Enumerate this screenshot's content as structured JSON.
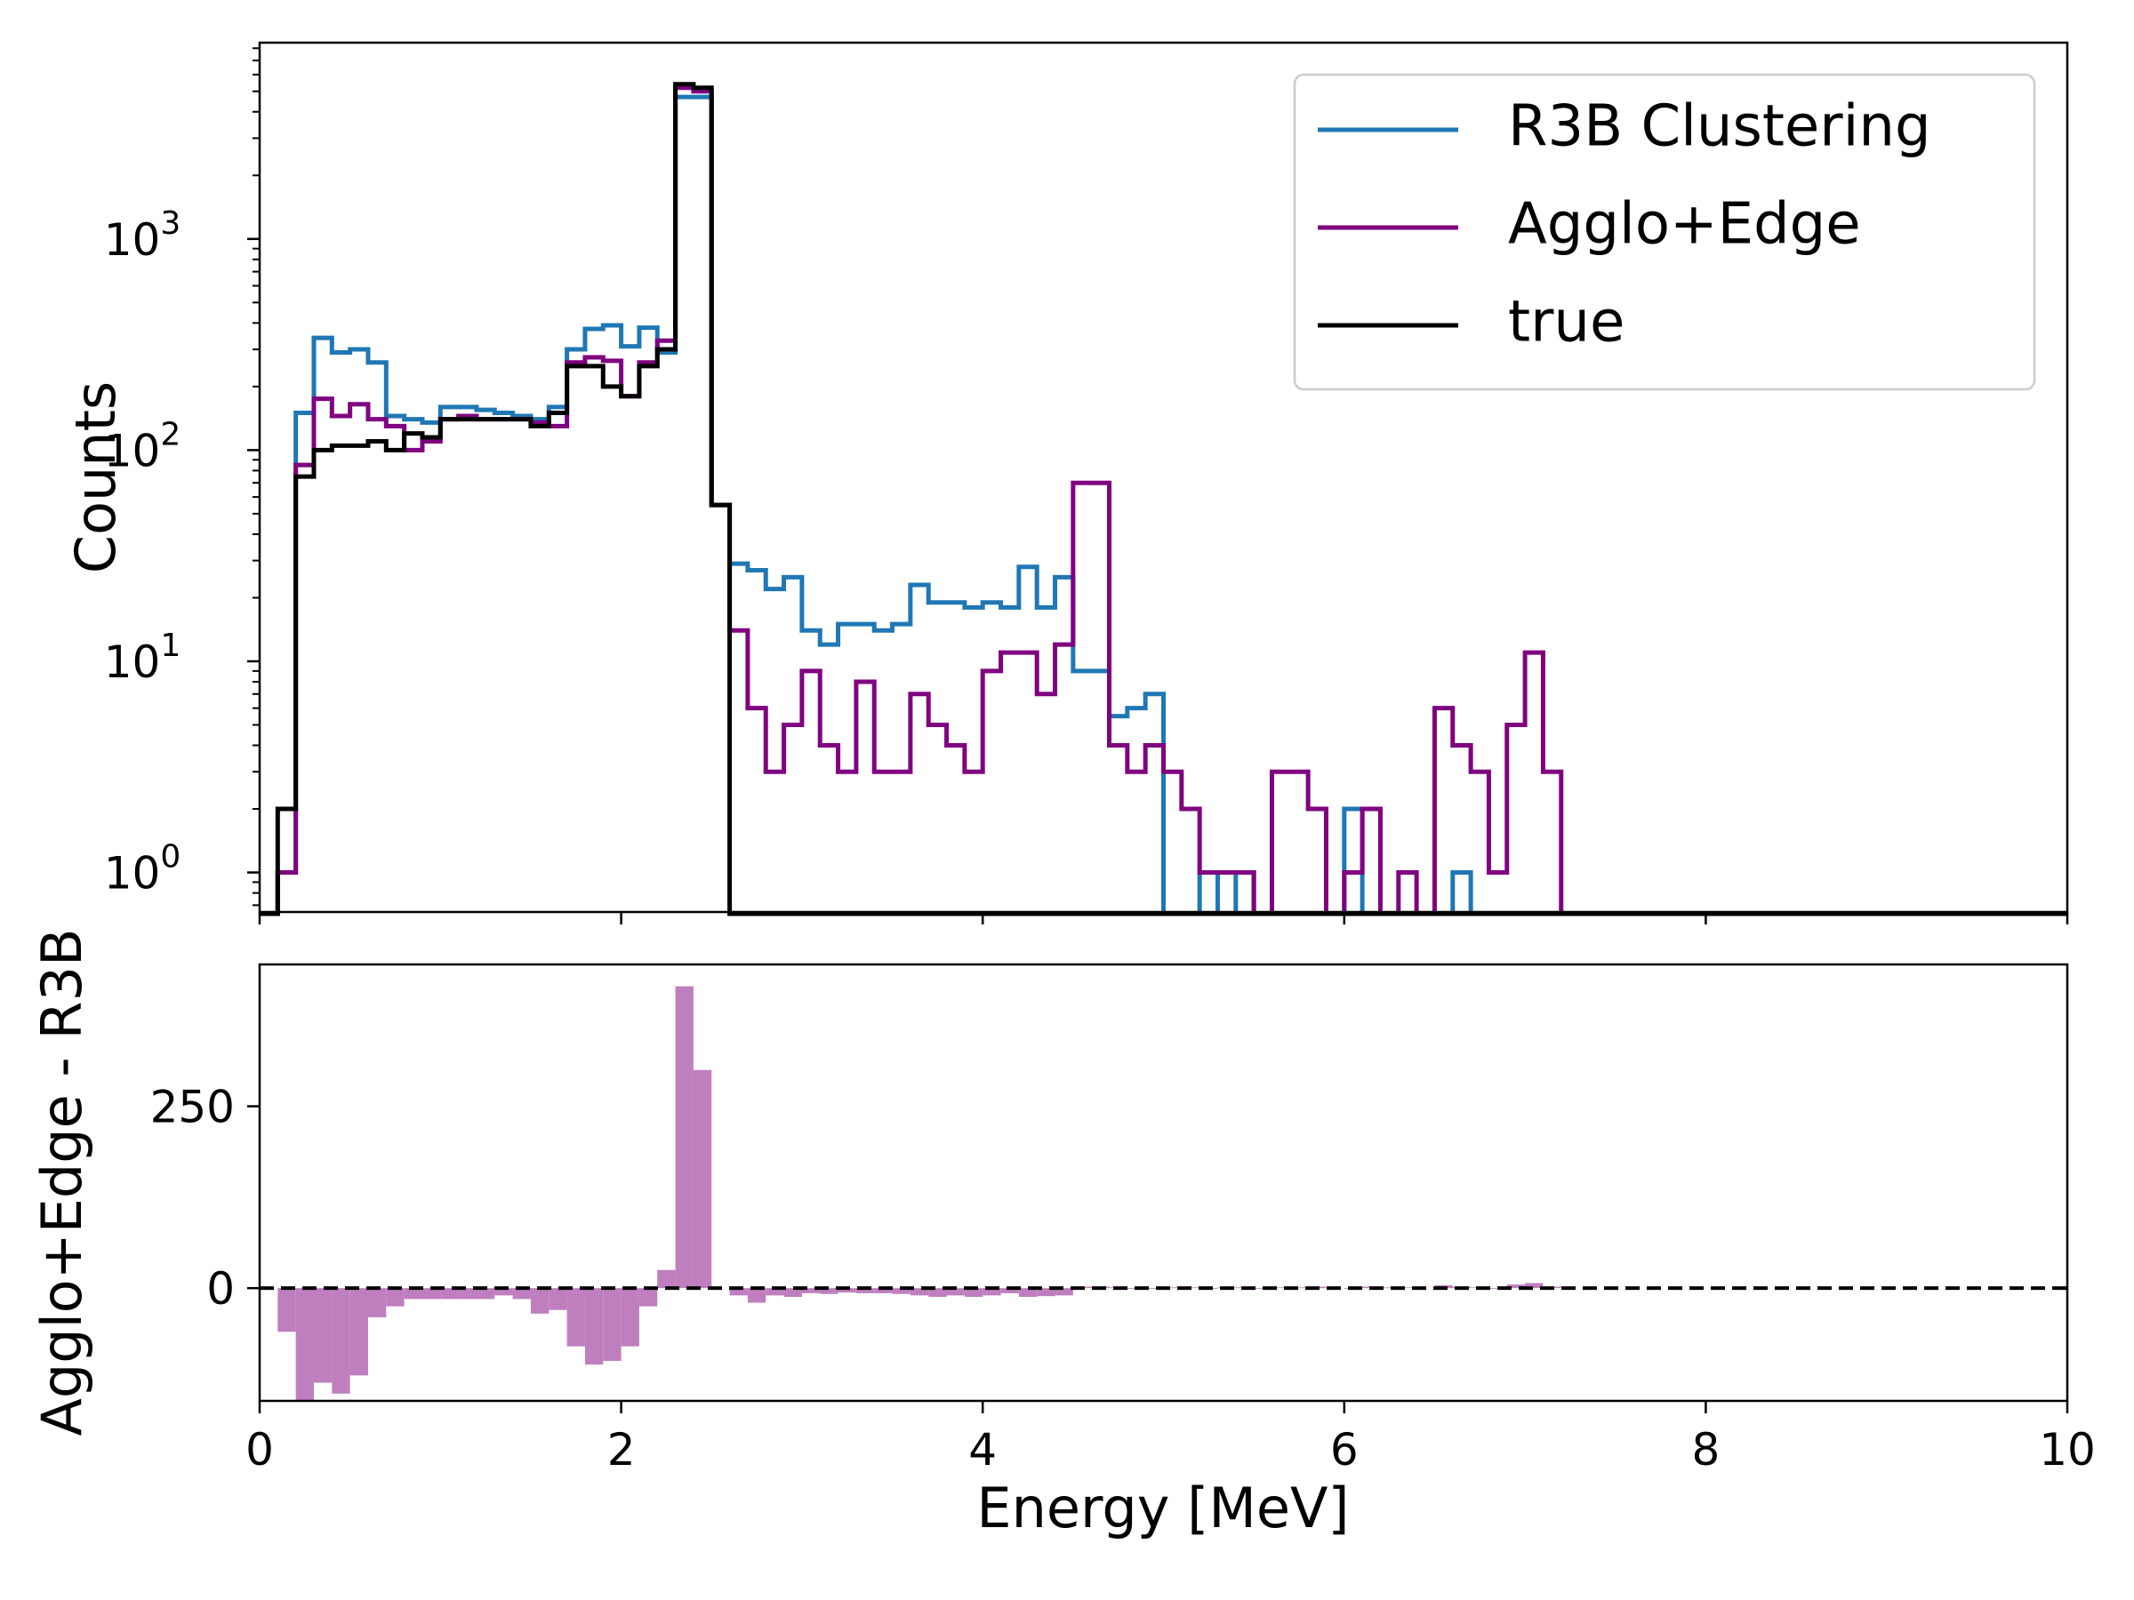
{
  "chart_data": [
    {
      "type": "histogram",
      "panel": "top",
      "ylabel": "Counts",
      "yscale": "log",
      "ylim": [
        0.65,
        8500
      ],
      "xlim": [
        0,
        10
      ],
      "bin_width": 0.1,
      "bin_start": 0.0,
      "yticks": [
        {
          "value": 1,
          "base": "10",
          "exp": "0"
        },
        {
          "value": 10,
          "base": "10",
          "exp": "1"
        },
        {
          "value": 100,
          "base": "10",
          "exp": "2"
        },
        {
          "value": 1000,
          "base": "10",
          "exp": "3"
        }
      ],
      "legend_position": "top-right",
      "series": [
        {
          "name": "R3B Clustering",
          "color": "#1f77b4",
          "values": [
            0,
            1,
            150,
            340,
            290,
            300,
            260,
            145,
            140,
            135,
            160,
            160,
            155,
            150,
            145,
            140,
            160,
            300,
            375,
            390,
            310,
            380,
            290,
            4700,
            4700,
            55,
            29,
            27,
            22,
            25,
            14,
            12,
            15,
            15,
            14,
            15,
            23,
            19,
            19,
            18,
            19,
            18,
            28,
            18,
            25,
            9,
            9,
            5.5,
            6,
            7,
            0,
            0,
            1,
            0,
            1,
            0,
            0,
            0,
            0,
            0,
            2,
            0,
            0,
            0,
            0,
            0,
            1,
            0,
            0,
            0,
            0,
            0,
            0,
            0,
            0,
            0,
            0,
            0,
            0,
            0,
            0,
            0,
            0,
            0,
            0,
            0,
            0,
            0,
            0,
            0,
            0,
            0,
            0,
            0,
            0,
            0,
            0,
            0,
            0,
            0
          ]
        },
        {
          "name": "Agglo+Edge",
          "color": "#800080",
          "values": [
            0,
            1,
            85,
            175,
            145,
            165,
            140,
            130,
            100,
            110,
            140,
            145,
            140,
            140,
            140,
            135,
            130,
            260,
            275,
            265,
            180,
            260,
            330,
            5200,
            5000,
            55,
            14,
            6,
            3,
            5,
            9,
            4,
            3,
            8,
            3,
            3,
            7,
            5,
            4,
            3,
            9,
            11,
            11,
            7,
            12,
            70,
            70,
            4,
            3,
            4,
            3,
            2,
            1,
            1,
            1,
            0,
            3,
            3,
            2,
            0,
            1,
            2,
            0,
            1,
            0,
            6,
            4,
            3,
            1,
            5,
            11,
            3,
            0,
            0,
            0,
            0,
            0,
            0,
            0,
            0,
            0,
            0,
            0,
            0,
            0,
            0,
            0,
            0,
            0,
            0,
            0,
            0,
            0,
            0,
            0,
            0,
            0,
            0,
            0,
            0
          ]
        },
        {
          "name": "true",
          "color": "#000000",
          "values": [
            0,
            2,
            75,
            100,
            105,
            105,
            110,
            100,
            120,
            115,
            140,
            140,
            140,
            140,
            140,
            130,
            150,
            250,
            250,
            200,
            180,
            250,
            300,
            5400,
            5200,
            55,
            0,
            0,
            0,
            0,
            0,
            0,
            0,
            0,
            0,
            0,
            0,
            0,
            0,
            0,
            0,
            0,
            0,
            0,
            0,
            0,
            0,
            0,
            0,
            0,
            0,
            0,
            0,
            0,
            0,
            0,
            0,
            0,
            0,
            0,
            0,
            0,
            0,
            0,
            0,
            0,
            0,
            0,
            0,
            0,
            0,
            0,
            0,
            0,
            0,
            0,
            0,
            0,
            0,
            0,
            0,
            0,
            0,
            0,
            0,
            0,
            0,
            0,
            0,
            0,
            0,
            0,
            0,
            0,
            0,
            0,
            0,
            0,
            0,
            0
          ]
        }
      ]
    },
    {
      "type": "bar",
      "panel": "bottom",
      "xlabel": "Energy [MeV]",
      "ylabel": "Agglo+Edge - R3B",
      "ylim": [
        -155,
        445
      ],
      "xlim": [
        0,
        10
      ],
      "bin_width": 0.1,
      "bin_start": 0.0,
      "xticks": [
        "0",
        "2",
        "4",
        "6",
        "8",
        "10"
      ],
      "yticks": [
        "0",
        "250"
      ],
      "reference_line": 0,
      "bar_color": "#bf7fbf",
      "values": [
        0,
        -60,
        -155,
        -130,
        -145,
        -120,
        -40,
        -25,
        -15,
        -15,
        -15,
        -15,
        -15,
        -10,
        -15,
        -35,
        -30,
        -80,
        -105,
        -100,
        -80,
        -25,
        25,
        415,
        300,
        0,
        -10,
        -20,
        -10,
        -12,
        -7,
        -8,
        -6,
        -7,
        -7,
        -8,
        -10,
        -12,
        -10,
        -12,
        -10,
        -7,
        -12,
        -11,
        -10,
        2,
        2,
        1,
        -1,
        -1,
        1,
        1,
        -1,
        1,
        1,
        -1,
        1,
        1,
        2,
        0,
        -1,
        2,
        1,
        1,
        0,
        4,
        2,
        1,
        -1,
        5,
        7,
        2,
        0,
        0,
        0,
        0,
        0,
        0,
        0,
        0,
        0,
        0,
        0,
        0,
        0,
        0,
        0,
        0,
        0,
        0,
        0,
        0,
        0,
        0,
        0,
        0,
        0,
        0,
        0,
        0
      ]
    }
  ]
}
